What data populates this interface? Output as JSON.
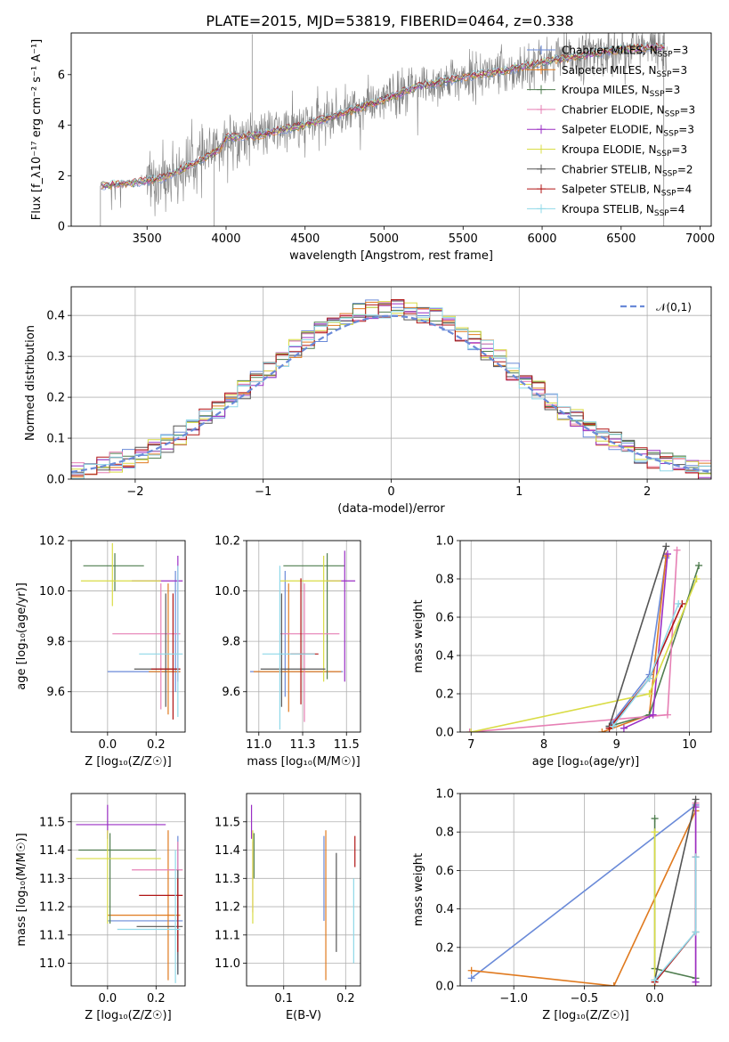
{
  "figure": {
    "title": "PLATE=2015, MJD=53819, FIBERID=0464, z=0.338"
  },
  "models": [
    {
      "name": "Chabrier MILES",
      "nssp": "3",
      "color": "#6a8ad8"
    },
    {
      "name": "Salpeter MILES",
      "nssp": "3",
      "color": "#e07a1f"
    },
    {
      "name": "Kroupa MILES",
      "nssp": "3",
      "color": "#4f7d4f"
    },
    {
      "name": "Chabrier ELODIE",
      "nssp": "3",
      "color": "#e67fb4"
    },
    {
      "name": "Salpeter ELODIE",
      "nssp": "3",
      "color": "#9a2fc4"
    },
    {
      "name": "Kroupa ELODIE",
      "nssp": "3",
      "color": "#d9dc45"
    },
    {
      "name": "Chabrier STELIB",
      "nssp": "2",
      "color": "#555555"
    },
    {
      "name": "Salpeter STELIB",
      "nssp": "4",
      "color": "#b01515"
    },
    {
      "name": "Kroupa STELIB",
      "nssp": "4",
      "color": "#8fd8e8"
    }
  ],
  "chart_data": [
    {
      "id": "spectrum",
      "type": "line",
      "xlabel": "wavelength [Angstrom, rest frame]",
      "ylabel": "Flux [f_λ 10^-17 erg cm^-2 s^-1 A^-1]",
      "xlim": [
        3020,
        7070
      ],
      "ylim": [
        0,
        7.65
      ],
      "xticks": [
        3500,
        4000,
        4500,
        5000,
        5500,
        6000,
        6500,
        7000
      ],
      "yticks": [
        0,
        2,
        4,
        6
      ],
      "data_color": "#808080",
      "continuum_anchors": [
        [
          3200,
          1.6
        ],
        [
          3400,
          1.7
        ],
        [
          3600,
          1.9
        ],
        [
          3700,
          2.2
        ],
        [
          3800,
          2.5
        ],
        [
          3950,
          3.0
        ],
        [
          4000,
          3.5
        ],
        [
          4200,
          3.6
        ],
        [
          4500,
          4.0
        ],
        [
          4800,
          4.6
        ],
        [
          5000,
          5.0
        ],
        [
          5200,
          5.5
        ],
        [
          5500,
          5.9
        ],
        [
          5800,
          6.2
        ],
        [
          6000,
          6.5
        ],
        [
          6300,
          6.8
        ],
        [
          6500,
          7.0
        ],
        [
          6800,
          7.1
        ]
      ],
      "legend": "top-right"
    },
    {
      "id": "residuals",
      "type": "histogram",
      "xlabel": "(data-model)/error",
      "ylabel": "Normed distribution",
      "xlim": [
        -2.5,
        2.5
      ],
      "ylim": [
        0,
        0.47
      ],
      "xticks": [
        -2,
        -1,
        0,
        1,
        2
      ],
      "yticks": [
        0.0,
        0.1,
        0.2,
        0.3,
        0.4
      ],
      "bin_width": 0.1,
      "reference": {
        "label": "N(0,1)",
        "color": "#6a8ad8",
        "mean": 0,
        "sigma": 1
      },
      "legend": "top-right"
    },
    {
      "id": "age_vs_Z",
      "type": "scatter",
      "xlabel": "Z [log10(Z/Z☉)]",
      "ylabel": "age [log10(age/yr)]",
      "xlim": [
        -0.15,
        0.32
      ],
      "ylim": [
        9.44,
        10.2
      ],
      "xticks": [
        0.0,
        0.2
      ],
      "yticks": [
        9.6,
        9.8,
        10.0,
        10.2
      ],
      "points": [
        {
          "m": 0,
          "x": 0.28,
          "y": 9.68,
          "xerr": [
            0.28,
            0.02
          ],
          "yerr": [
            0.08,
            0.4
          ]
        },
        {
          "m": 1,
          "x": 0.25,
          "y": 9.68,
          "xerr": [
            0.08,
            0.05
          ],
          "yerr": [
            0.17,
            0.35
          ]
        },
        {
          "m": 2,
          "x": 0.03,
          "y": 10.1,
          "xerr": [
            0.13,
            0.12
          ],
          "yerr": [
            0.1,
            0.05
          ]
        },
        {
          "m": 3,
          "x": 0.22,
          "y": 9.83,
          "xerr": [
            0.2,
            0.08
          ],
          "yerr": [
            0.3,
            0.2
          ]
        },
        {
          "m": 4,
          "x": 0.29,
          "y": 10.04,
          "xerr": [
            0.19,
            0.02
          ],
          "yerr": [
            0.4,
            0.1
          ]
        },
        {
          "m": 5,
          "x": 0.02,
          "y": 10.04,
          "xerr": [
            0.13,
            0.2
          ],
          "yerr": [
            0.1,
            0.15
          ]
        },
        {
          "m": 6,
          "x": 0.24,
          "y": 9.69,
          "xerr": [
            0.13,
            0.06
          ],
          "yerr": [
            0.15,
            0.3
          ]
        },
        {
          "m": 7,
          "x": 0.27,
          "y": 9.69,
          "xerr": [
            0.09,
            0.03
          ],
          "yerr": [
            0.2,
            0.3
          ]
        },
        {
          "m": 8,
          "x": 0.29,
          "y": 9.75,
          "xerr": [
            0.16,
            0.02
          ],
          "yerr": [
            0.25,
            0.35
          ]
        }
      ]
    },
    {
      "id": "age_vs_mass",
      "type": "scatter",
      "xlabel": "mass [log10(M/M☉)]",
      "ylabel": "",
      "xlim": [
        10.93,
        11.58
      ],
      "ylim": [
        9.44,
        10.2
      ],
      "xticks": [
        11.0,
        11.25,
        11.5
      ],
      "yticks": [
        9.6,
        9.8,
        10.0,
        10.2
      ],
      "points": [
        {
          "m": 0,
          "x": 11.15,
          "y": 9.68,
          "xerr": [
            0.2,
            0.33
          ],
          "yerr": [
            0.1,
            0.4
          ]
        },
        {
          "m": 1,
          "x": 11.17,
          "y": 9.68,
          "xerr": [
            0.2,
            0.3
          ],
          "yerr": [
            0.16,
            0.35
          ]
        },
        {
          "m": 2,
          "x": 11.39,
          "y": 10.1,
          "xerr": [
            0.25,
            0.1
          ],
          "yerr": [
            0.45,
            0.05
          ]
        },
        {
          "m": 3,
          "x": 11.26,
          "y": 9.83,
          "xerr": [
            0.14,
            0.2
          ],
          "yerr": [
            0.35,
            0.2
          ]
        },
        {
          "m": 4,
          "x": 11.49,
          "y": 10.04,
          "xerr": [
            0.1,
            0.06
          ],
          "yerr": [
            0.4,
            0.12
          ]
        },
        {
          "m": 5,
          "x": 11.37,
          "y": 10.04,
          "xerr": [
            0.25,
            0.1
          ],
          "yerr": [
            0.4,
            0.1
          ]
        },
        {
          "m": 6,
          "x": 11.13,
          "y": 9.69,
          "xerr": [
            0.12,
            0.25
          ],
          "yerr": [
            0.15,
            0.3
          ]
        },
        {
          "m": 7,
          "x": 11.24,
          "y": 9.75,
          "xerr": [
            0.06,
            0.1
          ],
          "yerr": [
            0.2,
            0.3
          ]
        },
        {
          "m": 8,
          "x": 11.12,
          "y": 9.75,
          "xerr": [
            0.1,
            0.2
          ],
          "yerr": [
            0.3,
            0.35
          ]
        }
      ]
    },
    {
      "id": "weight_vs_age",
      "type": "line",
      "xlabel": "age [log10(age/yr)]",
      "ylabel": "mass weight",
      "xlim": [
        6.85,
        10.3
      ],
      "ylim": [
        0,
        1.0
      ],
      "xticks": [
        7,
        8,
        9,
        10
      ],
      "yticks": [
        0.0,
        0.2,
        0.4,
        0.6,
        0.8,
        1.0
      ],
      "series": [
        {
          "m": 0,
          "x": [
            8.9,
            9.45,
            9.68
          ],
          "y": [
            0.03,
            0.3,
            0.91
          ]
        },
        {
          "m": 1,
          "x": [
            8.8,
            9.45,
            9.68
          ],
          "y": [
            0.0,
            0.09,
            0.92
          ]
        },
        {
          "m": 2,
          "x": [
            8.9,
            9.45,
            10.13
          ],
          "y": [
            0.03,
            0.09,
            0.87
          ]
        },
        {
          "m": 3,
          "x": [
            6.98,
            9.7,
            9.83
          ],
          "y": [
            0.0,
            0.09,
            0.95
          ]
        },
        {
          "m": 4,
          "x": [
            9.1,
            9.5,
            9.7
          ],
          "y": [
            0.02,
            0.09,
            0.93
          ]
        },
        {
          "m": 5,
          "x": [
            7.0,
            9.45,
            10.1
          ],
          "y": [
            0.0,
            0.2,
            0.8
          ]
        },
        {
          "m": 6,
          "x": [
            8.9,
            9.68
          ],
          "y": [
            0.03,
            0.97
          ]
        },
        {
          "m": 7,
          "x": [
            8.9,
            9.45,
            9.9
          ],
          "y": [
            0.02,
            0.28,
            0.67
          ]
        },
        {
          "m": 8,
          "x": [
            8.95,
            9.45,
            9.85
          ],
          "y": [
            0.03,
            0.28,
            0.67
          ]
        }
      ]
    },
    {
      "id": "mass_vs_Z",
      "type": "scatter",
      "xlabel": "Z [log10(Z/Z☉)]",
      "ylabel": "mass [log10(M/M☉)]",
      "xlim": [
        -0.15,
        0.32
      ],
      "ylim": [
        10.92,
        11.6
      ],
      "xticks": [
        0.0,
        0.2
      ],
      "yticks": [
        11.0,
        11.1,
        11.2,
        11.3,
        11.4,
        11.5
      ],
      "points": [
        {
          "m": 0,
          "x": 0.29,
          "y": 11.15,
          "xerr": [
            0.29,
            0.02
          ],
          "yerr": [
            0.19,
            0.3
          ]
        },
        {
          "m": 1,
          "x": 0.25,
          "y": 11.17,
          "xerr": [
            0.25,
            0.05
          ],
          "yerr": [
            0.23,
            0.3
          ]
        },
        {
          "m": 2,
          "x": 0.01,
          "y": 11.4,
          "xerr": [
            0.13,
            0.19
          ],
          "yerr": [
            0.26,
            0.06
          ]
        },
        {
          "m": 3,
          "x": 0.29,
          "y": 11.33,
          "xerr": [
            0.19,
            0.02
          ],
          "yerr": [
            0.3,
            0.1
          ]
        },
        {
          "m": 4,
          "x": 0.0,
          "y": 11.49,
          "xerr": [
            0.13,
            0.24
          ],
          "yerr": [
            0.05,
            0.07
          ]
        },
        {
          "m": 5,
          "x": 0.0,
          "y": 11.37,
          "xerr": [
            0.13,
            0.22
          ],
          "yerr": [
            0.23,
            0.1
          ]
        },
        {
          "m": 6,
          "x": 0.29,
          "y": 11.13,
          "xerr": [
            0.17,
            0.02
          ],
          "yerr": [
            0.17,
            0.2
          ]
        },
        {
          "m": 7,
          "x": 0.29,
          "y": 11.24,
          "xerr": [
            0.16,
            0.02
          ],
          "yerr": [
            0.2,
            0.06
          ]
        },
        {
          "m": 8,
          "x": 0.28,
          "y": 11.12,
          "xerr": [
            0.24,
            0.02
          ],
          "yerr": [
            0.19,
            0.28
          ]
        }
      ]
    },
    {
      "id": "mass_vs_ebv",
      "type": "scatter",
      "xlabel": "E(B-V)",
      "ylabel": "",
      "xlim": [
        0.04,
        0.224
      ],
      "ylim": [
        10.92,
        11.6
      ],
      "xticks": [
        0.1,
        0.2
      ],
      "yticks": [
        11.0,
        11.1,
        11.2,
        11.3,
        11.4,
        11.5
      ],
      "points": [
        {
          "m": 0,
          "x": 0.165,
          "y": 11.15,
          "xerr": [
            0,
            0
          ],
          "yerr": [
            0.0,
            0.3
          ]
        },
        {
          "m": 1,
          "x": 0.168,
          "y": 11.17,
          "xerr": [
            0,
            0
          ],
          "yerr": [
            0.23,
            0.3
          ]
        },
        {
          "m": 2,
          "x": 0.052,
          "y": 11.4,
          "xerr": [
            0,
            0
          ],
          "yerr": [
            0.1,
            0.06
          ]
        },
        {
          "m": 3,
          "x": 0.05,
          "y": 11.33,
          "xerr": [
            0,
            0
          ],
          "yerr": [
            0.15,
            0.1
          ]
        },
        {
          "m": 4,
          "x": 0.048,
          "y": 11.49,
          "xerr": [
            0,
            0
          ],
          "yerr": [
            0.05,
            0.07
          ]
        },
        {
          "m": 5,
          "x": 0.05,
          "y": 11.37,
          "xerr": [
            0,
            0
          ],
          "yerr": [
            0.23,
            0.1
          ]
        },
        {
          "m": 6,
          "x": 0.185,
          "y": 11.13,
          "xerr": [
            0,
            0
          ],
          "yerr": [
            0.09,
            0.26
          ]
        },
        {
          "m": 7,
          "x": 0.215,
          "y": 11.4,
          "xerr": [
            0,
            0
          ],
          "yerr": [
            0.06,
            0.05
          ]
        },
        {
          "m": 8,
          "x": 0.213,
          "y": 11.12,
          "xerr": [
            0,
            0
          ],
          "yerr": [
            0.12,
            0.18
          ]
        }
      ]
    },
    {
      "id": "weight_vs_Z",
      "type": "line",
      "xlabel": "Z [log10(Z/Z☉)]",
      "ylabel": "mass weight",
      "xlim": [
        -1.38,
        0.4
      ],
      "ylim": [
        0,
        1.0
      ],
      "xticks": [
        -1.0,
        -0.5,
        0.0
      ],
      "yticks": [
        0.0,
        0.2,
        0.4,
        0.6,
        0.8,
        1.0
      ],
      "series": [
        {
          "m": 0,
          "x": [
            -1.3,
            0.29
          ],
          "y": [
            0.04,
            0.94
          ]
        },
        {
          "m": 1,
          "x": [
            -1.3,
            -0.29,
            0.29
          ],
          "y": [
            0.08,
            0.0,
            0.91
          ]
        },
        {
          "m": 2,
          "x": [
            0.0,
            0.0,
            0.29
          ],
          "y": [
            0.87,
            0.09,
            0.04
          ]
        },
        {
          "m": 3,
          "x": [
            0.29,
            0.29
          ],
          "y": [
            0.0,
            0.95
          ]
        },
        {
          "m": 4,
          "x": [
            0.29,
            0.29
          ],
          "y": [
            0.02,
            0.93
          ]
        },
        {
          "m": 5,
          "x": [
            0.0,
            0.0
          ],
          "y": [
            0.0,
            0.8
          ]
        },
        {
          "m": 6,
          "x": [
            0.0,
            0.29
          ],
          "y": [
            0.03,
            0.97
          ]
        },
        {
          "m": 7,
          "x": [
            0.0,
            0.29,
            0.29
          ],
          "y": [
            0.02,
            0.28,
            0.67
          ]
        },
        {
          "m": 8,
          "x": [
            0.0,
            0.29,
            0.29
          ],
          "y": [
            0.03,
            0.28,
            0.67
          ]
        }
      ]
    }
  ]
}
